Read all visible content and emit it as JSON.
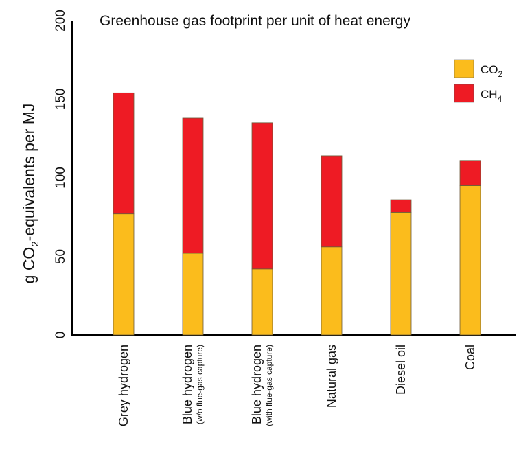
{
  "chart_data": {
    "type": "bar",
    "stacked": true,
    "title": "Greenhouse gas footprint per unit of heat energy",
    "ylabel": {
      "base": "g CO",
      "subscript": "2",
      "rest": "-equivalents per MJ"
    },
    "xlabel": "",
    "ylim": [
      0,
      200
    ],
    "yticks": [
      "0",
      "50",
      "100",
      "150",
      "200"
    ],
    "grid": false,
    "legend_position": "top-right",
    "categories": [
      {
        "label": "Grey hydrogen",
        "sublabel": ""
      },
      {
        "label": "Blue hydrogen",
        "sublabel": "(w/o flue-gas capture)"
      },
      {
        "label": "Blue hydrogen",
        "sublabel": "(with flue-gas capture)"
      },
      {
        "label": "Natural gas",
        "sublabel": ""
      },
      {
        "label": "Diesel oil",
        "sublabel": ""
      },
      {
        "label": "Coal",
        "sublabel": ""
      }
    ],
    "series": [
      {
        "name": "CO2",
        "legend_base": "CO",
        "legend_sub": "2",
        "color": "#FBBC1C",
        "values": [
          77,
          52,
          42,
          56,
          78,
          95
        ]
      },
      {
        "name": "CH4",
        "legend_base": "CH",
        "legend_sub": "4",
        "color": "#EE1B24",
        "values": [
          77,
          86,
          93,
          58,
          8,
          16
        ]
      }
    ]
  }
}
